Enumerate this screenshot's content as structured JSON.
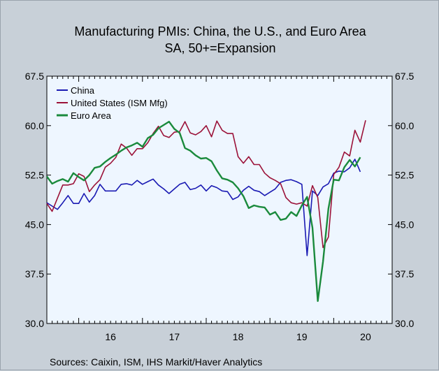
{
  "chart_data": {
    "type": "line",
    "title": "Manufacturing PMIs: China, the U.S., and Euro Area",
    "subtitle": "SA, 50+=Expansion",
    "source": "Sources:   Caixin, ISM, IHS Markit/Haver Analytics",
    "ylim": [
      30.0,
      67.5
    ],
    "yticks": [
      30.0,
      37.5,
      45.0,
      52.5,
      60.0,
      67.5
    ],
    "ytick_labels": [
      "30.0",
      "37.5",
      "45.0",
      "52.5",
      "60.0",
      "67.5"
    ],
    "xlim": [
      2015.5,
      2020.917
    ],
    "year_labels": [
      "16",
      "17",
      "18",
      "19",
      "20"
    ],
    "legend_position": "top-left",
    "colors": {
      "plot_bg": "#eef6ff",
      "page_bg": "#c8d0d8"
    },
    "series": [
      {
        "name": "China",
        "color": "#1a1ab3",
        "start": 2015.5,
        "values": [
          48.3,
          47.8,
          47.3,
          48.3,
          49.4,
          48.2,
          48.2,
          49.7,
          48.4,
          49.4,
          51.1,
          50.1,
          50.1,
          50.1,
          51.1,
          51.2,
          51.0,
          51.7,
          51.1,
          51.5,
          51.9,
          51.0,
          50.4,
          49.7,
          50.4,
          51.1,
          51.4,
          50.3,
          50.5,
          51.0,
          50.1,
          50.9,
          50.6,
          50.1,
          50.0,
          48.8,
          49.2,
          50.2,
          50.8,
          50.2,
          50.0,
          49.4,
          49.9,
          50.4,
          51.4,
          51.7,
          51.8,
          51.5,
          51.1,
          40.3,
          50.1,
          49.4,
          50.7,
          51.2,
          52.8,
          53.1,
          53.0,
          53.6,
          54.9,
          53.0
        ],
        "x_override": [
          2015.5,
          2015.583,
          2015.667,
          2015.75,
          2015.833,
          2015.917,
          2016.0,
          2016.083,
          2016.167,
          2016.25,
          2016.333,
          2016.417,
          2016.5,
          2016.583,
          2016.667,
          2016.75,
          2016.833,
          2016.917,
          2017.0,
          2017.083,
          2017.167,
          2017.25,
          2017.333,
          2017.417,
          2017.5,
          2017.583,
          2017.667,
          2017.75,
          2017.833,
          2017.917,
          2018.0,
          2018.083,
          2018.167,
          2018.25,
          2018.333,
          2018.417,
          2018.5,
          2018.583,
          2018.667,
          2018.75,
          2018.833,
          2018.917,
          2019.0,
          2019.083,
          2019.167,
          2019.25,
          2019.333,
          2019.417,
          2019.5,
          2019.583,
          2019.667,
          2019.75,
          2019.833,
          2019.917,
          2020.0,
          2020.083,
          2020.167,
          2020.25,
          2020.333,
          2020.417
        ]
      },
      {
        "name": "United States (ISM Mfg)",
        "color": "#9b1239",
        "start": 2015.5,
        "values": [
          48.2,
          47.0,
          49.0,
          51.0,
          51.0,
          51.2,
          52.7,
          52.3,
          50.0,
          51.0,
          51.8,
          53.7,
          54.3,
          55.2,
          57.2,
          56.6,
          55.5,
          56.5,
          56.5,
          57.4,
          58.8,
          59.9,
          58.5,
          58.2,
          59.0,
          59.1,
          60.6,
          58.9,
          58.6,
          59.1,
          60.0,
          58.3,
          60.7,
          59.3,
          58.8,
          58.8,
          55.3,
          54.3,
          55.3,
          54.1,
          54.1,
          52.8,
          52.1,
          51.7,
          51.2,
          49.1,
          48.3,
          48.1,
          48.3,
          47.8,
          50.9,
          49.1,
          41.5,
          43.1,
          52.6,
          53.7,
          56.0,
          55.4,
          59.3,
          57.5,
          60.8
        ],
        "x_override": [
          2015.5,
          2015.583,
          2015.667,
          2015.75,
          2015.833,
          2015.917,
          2016.0,
          2016.083,
          2016.167,
          2016.25,
          2016.333,
          2016.417,
          2016.5,
          2016.583,
          2016.667,
          2016.75,
          2016.833,
          2016.917,
          2017.0,
          2017.083,
          2017.167,
          2017.25,
          2017.333,
          2017.417,
          2017.5,
          2017.583,
          2017.667,
          2017.75,
          2017.833,
          2017.917,
          2018.0,
          2018.083,
          2018.167,
          2018.25,
          2018.333,
          2018.417,
          2018.5,
          2018.583,
          2018.667,
          2018.75,
          2018.833,
          2018.917,
          2019.0,
          2019.083,
          2019.167,
          2019.25,
          2019.333,
          2019.417,
          2019.5,
          2019.583,
          2019.667,
          2019.75,
          2019.833,
          2019.917,
          2020.0,
          2020.083,
          2020.167,
          2020.25,
          2020.333,
          2020.417,
          2020.5
        ]
      },
      {
        "name": "Euro Area",
        "color": "#1a8a3c",
        "start": 2015.5,
        "values": [
          52.3,
          51.2,
          51.6,
          51.9,
          51.5,
          52.8,
          52.2,
          51.7,
          52.5,
          53.6,
          53.8,
          54.5,
          55.1,
          55.6,
          56.2,
          56.7,
          57.0,
          57.4,
          56.8,
          58.1,
          58.6,
          59.6,
          60.1,
          60.6,
          59.5,
          58.9,
          56.6,
          56.2,
          55.5,
          55.0,
          55.1,
          54.6,
          53.2,
          52.0,
          51.8,
          51.4,
          50.5,
          49.3,
          47.5,
          47.9,
          47.7,
          47.6,
          46.5,
          46.9,
          45.7,
          45.9,
          46.9,
          46.3,
          47.9,
          49.2,
          44.5,
          33.4,
          39.4,
          47.4,
          51.8,
          51.7,
          53.7,
          54.8,
          53.8,
          55.2
        ],
        "x_override": [
          2015.5,
          2015.583,
          2015.667,
          2015.75,
          2015.833,
          2015.917,
          2016.0,
          2016.083,
          2016.167,
          2016.25,
          2016.333,
          2016.417,
          2016.5,
          2016.583,
          2016.667,
          2016.75,
          2016.833,
          2016.917,
          2017.0,
          2017.083,
          2017.167,
          2017.25,
          2017.333,
          2017.417,
          2017.5,
          2017.583,
          2017.667,
          2017.75,
          2017.833,
          2017.917,
          2018.0,
          2018.083,
          2018.167,
          2018.25,
          2018.333,
          2018.417,
          2018.5,
          2018.583,
          2018.667,
          2018.75,
          2018.833,
          2018.917,
          2019.0,
          2019.083,
          2019.167,
          2019.25,
          2019.333,
          2019.417,
          2019.5,
          2019.583,
          2019.667,
          2019.75,
          2019.833,
          2019.917,
          2020.0,
          2020.083,
          2020.167,
          2020.25,
          2020.333,
          2020.417
        ]
      }
    ]
  }
}
